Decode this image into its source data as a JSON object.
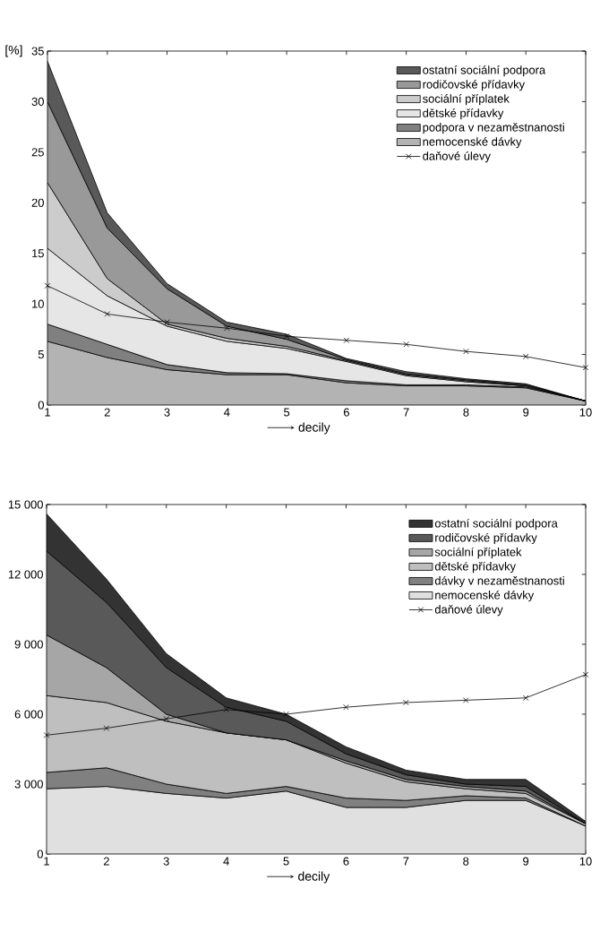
{
  "chart_data": [
    {
      "type": "area",
      "stacked": true,
      "ylabel": "[%]",
      "xlabel": "decily",
      "x": [
        1,
        2,
        3,
        4,
        5,
        6,
        7,
        8,
        9,
        10
      ],
      "xlim": [
        1,
        10
      ],
      "xticks": [
        1,
        2,
        3,
        4,
        5,
        6,
        7,
        8,
        9,
        10
      ],
      "ylim": [
        0,
        35
      ],
      "yticks": [
        0,
        5,
        10,
        15,
        20,
        25,
        30,
        35
      ],
      "legend": "top right",
      "grid": false,
      "series": [
        {
          "name": "nemocenské dávky",
          "color": "#b3b3b3",
          "values": [
            6.3,
            4.7,
            3.5,
            3.0,
            3.0,
            2.2,
            1.9,
            1.9,
            1.7,
            0.4
          ]
        },
        {
          "name": "podpora v nezaměstnanosti",
          "color": "#808080",
          "values": [
            1.7,
            1.3,
            0.5,
            0.2,
            0.1,
            0.2,
            0.1,
            0.1,
            0.1,
            0
          ]
        },
        {
          "name": "dětské přídavky",
          "color": "#e6e6e6",
          "values": [
            7.5,
            4.8,
            3.8,
            3.1,
            2.5,
            1.9,
            0.9,
            0.3,
            0.1,
            0
          ]
        },
        {
          "name": "sociální příplatek",
          "color": "#cccccc",
          "values": [
            6.5,
            1.7,
            0.2,
            0.3,
            0.2,
            0.1,
            0.1,
            0.1,
            0,
            0
          ]
        },
        {
          "name": "rodičovské přídavky",
          "color": "#999999",
          "values": [
            8,
            5,
            3.5,
            1.2,
            0.7,
            0.1,
            0.1,
            0.1,
            0.1,
            0
          ]
        },
        {
          "name": "ostatní sociální podpora",
          "color": "#595959",
          "values": [
            4,
            1.5,
            0.5,
            0.4,
            0.5,
            0.1,
            0.2,
            0.1,
            0.1,
            0
          ]
        },
        {
          "name": "daňové úlevy",
          "type": "line",
          "color": "#000000",
          "marker": "cross",
          "line_style": "solid",
          "values": [
            11.8,
            9.0,
            8.2,
            7.6,
            6.8,
            6.4,
            6.0,
            5.3,
            4.8,
            3.7
          ]
        }
      ]
    },
    {
      "type": "area",
      "stacked": true,
      "xlabel": "decily",
      "x": [
        1,
        2,
        3,
        4,
        5,
        6,
        7,
        8,
        9,
        10
      ],
      "xlim": [
        1,
        10
      ],
      "xticks": [
        1,
        2,
        3,
        4,
        5,
        6,
        7,
        8,
        9,
        10
      ],
      "ylim": [
        0,
        15000
      ],
      "yticks": [
        0,
        {
          "value": 3000,
          "label": "3 000"
        },
        {
          "value": 6000,
          "label": "6 000"
        },
        {
          "value": 9000,
          "label": "9 000"
        },
        {
          "value": 12000,
          "label": "12 000"
        },
        {
          "value": 15000,
          "label": "15 000"
        }
      ],
      "legend": "top right",
      "grid": false,
      "series": [
        {
          "name": "nemocenské dávky",
          "color": "#e0e0e0",
          "values": [
            2800,
            2900,
            2600,
            2400,
            2700,
            2000,
            2000,
            2300,
            2300,
            1200
          ]
        },
        {
          "name": "dávky v nezaměstnanosti",
          "color": "#808080",
          "values": [
            700,
            800,
            400,
            200,
            200,
            400,
            300,
            200,
            100,
            0
          ]
        },
        {
          "name": "dětské přídavky",
          "color": "#bfbfbf",
          "values": [
            3300,
            2800,
            2700,
            2600,
            2000,
            1500,
            800,
            300,
            200,
            100
          ]
        },
        {
          "name": "sociální příplatek",
          "color": "#a6a6a6",
          "values": [
            2600,
            1500,
            300,
            0,
            0,
            100,
            100,
            100,
            100,
            0
          ]
        },
        {
          "name": "rodičovské přídavky",
          "color": "#595959",
          "values": [
            3600,
            2800,
            2000,
            1100,
            800,
            300,
            200,
            100,
            200,
            0
          ]
        },
        {
          "name": "ostatní sociální podpora",
          "color": "#333333",
          "values": [
            1600,
            1000,
            600,
            400,
            300,
            300,
            200,
            200,
            300,
            100
          ]
        },
        {
          "name": "daňové úlevy",
          "type": "line",
          "color": "#000000",
          "marker": "cross",
          "line_style": "solid",
          "values": [
            5100,
            5400,
            5800,
            6200,
            6000,
            6300,
            6500,
            6600,
            6700,
            7700
          ]
        }
      ]
    }
  ]
}
